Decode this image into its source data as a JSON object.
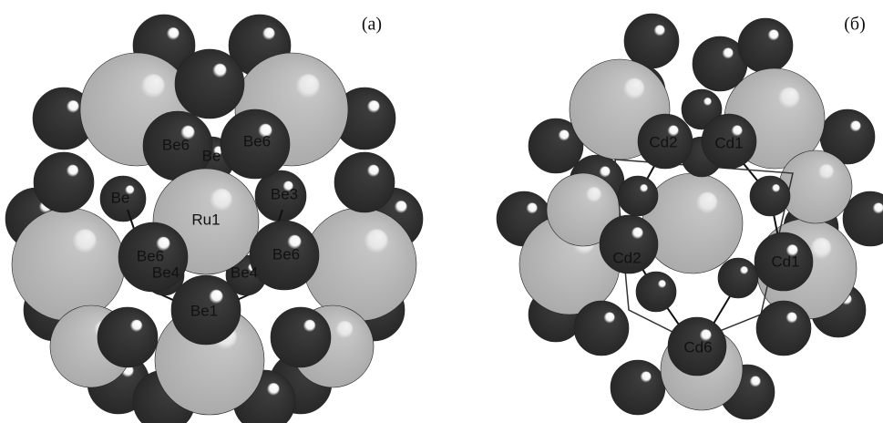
{
  "panels": [
    {
      "label": "(a)",
      "atom_labels": [
        "Be6",
        "Be6",
        "Be",
        "Be",
        "Ru1",
        "Be3",
        "Be6",
        "Be6",
        "Be4",
        "Be4",
        "Be1"
      ]
    },
    {
      "label": "(б)",
      "atom_labels": [
        "Cd2",
        "Cd1",
        "Cd2",
        "Cd1",
        "Cd6"
      ]
    }
  ]
}
